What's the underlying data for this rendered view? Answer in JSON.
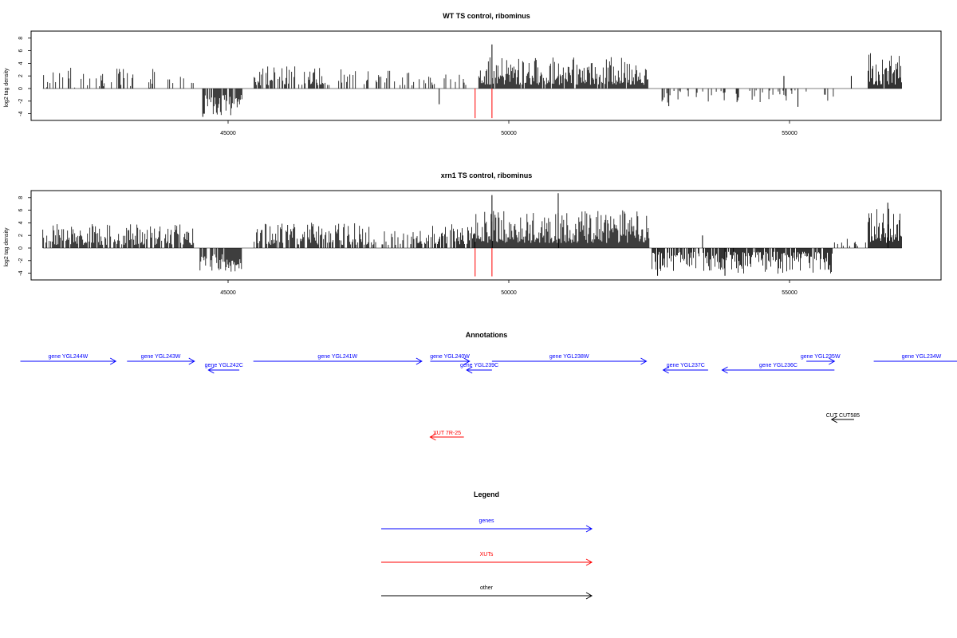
{
  "colors": {
    "genes": "#0000ff",
    "xuts": "#ff0000",
    "other": "#000000",
    "density": "#000000",
    "marker": "#ff0000"
  },
  "chart_data": [
    {
      "type": "bar",
      "title": "WT TS control, ribominus",
      "ylabel": "log2 tag density",
      "x_range": [
        41500,
        57200
      ],
      "ylim": [
        -5,
        9.5
      ],
      "x_ticks": [
        "45000",
        "50000",
        "55000"
      ],
      "x_tick_values": [
        45000,
        50000,
        55000
      ],
      "y_ticks": [
        "-4",
        "-2",
        "0",
        "2",
        "4",
        "6",
        "8"
      ],
      "y_tick_values": [
        -4,
        -2,
        0,
        2,
        4,
        6,
        8
      ],
      "segments": [
        {
          "from": 41700,
          "to": 44100,
          "min": 0,
          "max": 3.4,
          "density": 0.28,
          "sign": 1
        },
        {
          "from": 44150,
          "to": 44400,
          "min": 0.5,
          "max": 2.0,
          "density": 0.1,
          "sign": 1
        },
        {
          "from": 44550,
          "to": 45250,
          "min": 1.0,
          "max": 4.3,
          "density": 0.75,
          "sign": -1
        },
        {
          "from": 45450,
          "to": 46800,
          "min": 0.5,
          "max": 3.6,
          "density": 0.55,
          "sign": 1
        },
        {
          "from": 46800,
          "to": 48700,
          "min": 0.5,
          "max": 3.1,
          "density": 0.28,
          "sign": 1
        },
        {
          "from": 48750,
          "to": 49250,
          "min": 0.5,
          "max": 2.4,
          "density": 0.2,
          "sign": 1
        },
        {
          "from": 49450,
          "to": 52500,
          "min": 0.6,
          "max": 5.0,
          "density": 0.95,
          "sign": 1
        },
        {
          "from": 52700,
          "to": 54800,
          "min": 0.3,
          "max": 2.4,
          "density": 0.22,
          "sign": -1
        },
        {
          "from": 54800,
          "to": 55800,
          "min": 0.3,
          "max": 2.0,
          "density": 0.2,
          "sign": -1
        },
        {
          "from": 56400,
          "to": 57000,
          "min": 0.5,
          "max": 5.7,
          "density": 0.95,
          "sign": 1
        }
      ],
      "spikes": [
        {
          "x": 48760,
          "y": -2.5
        },
        {
          "x": 49400,
          "y": -4.7,
          "color": "marker"
        },
        {
          "x": 49700,
          "y": -4.7,
          "color": "marker"
        },
        {
          "x": 49700,
          "y": 7.0
        },
        {
          "x": 52850,
          "y": -2.8
        },
        {
          "x": 55150,
          "y": -2.9
        },
        {
          "x": 56100,
          "y": 2.0
        },
        {
          "x": 54900,
          "y": 2.0
        },
        {
          "x": 44550,
          "y": -4.5
        }
      ]
    },
    {
      "type": "bar",
      "title": "xrn1 TS control, ribominus",
      "ylabel": "log2 tag density",
      "x_range": [
        41500,
        57200
      ],
      "ylim": [
        -5,
        9.5
      ],
      "x_ticks": [
        "45000",
        "50000",
        "55000"
      ],
      "x_tick_values": [
        45000,
        50000,
        55000
      ],
      "y_ticks": [
        "-4",
        "-2",
        "0",
        "2",
        "4",
        "6",
        "8"
      ],
      "y_tick_values": [
        -4,
        -2,
        0,
        2,
        4,
        6,
        8
      ],
      "segments": [
        {
          "from": 41700,
          "to": 44400,
          "min": 0.5,
          "max": 3.8,
          "density": 0.75,
          "sign": 1
        },
        {
          "from": 44500,
          "to": 45250,
          "min": 1.0,
          "max": 3.8,
          "density": 0.85,
          "sign": -1
        },
        {
          "from": 45450,
          "to": 47600,
          "min": 0.5,
          "max": 4.2,
          "density": 0.7,
          "sign": 1
        },
        {
          "from": 47600,
          "to": 48500,
          "min": 0.5,
          "max": 2.8,
          "density": 0.45,
          "sign": 1
        },
        {
          "from": 48500,
          "to": 49400,
          "min": 0.6,
          "max": 4.0,
          "density": 0.8,
          "sign": 1
        },
        {
          "from": 49400,
          "to": 52500,
          "min": 0.8,
          "max": 6.0,
          "density": 1.0,
          "sign": 1
        },
        {
          "from": 52550,
          "to": 54000,
          "min": 0.6,
          "max": 3.8,
          "density": 0.75,
          "sign": -1
        },
        {
          "from": 54000,
          "to": 55800,
          "min": 0.6,
          "max": 4.2,
          "density": 0.85,
          "sign": -1
        },
        {
          "from": 55800,
          "to": 56400,
          "min": 0.3,
          "max": 1.5,
          "density": 0.3,
          "sign": 1
        },
        {
          "from": 56400,
          "to": 57000,
          "min": 0.8,
          "max": 6.6,
          "density": 1.0,
          "sign": 1
        }
      ],
      "spikes": [
        {
          "x": 49400,
          "y": -4.5,
          "color": "marker"
        },
        {
          "x": 49700,
          "y": -4.5,
          "color": "marker"
        },
        {
          "x": 49700,
          "y": 8.4
        },
        {
          "x": 50880,
          "y": 8.7
        },
        {
          "x": 52650,
          "y": -4.4
        },
        {
          "x": 53850,
          "y": -4.4
        },
        {
          "x": 56750,
          "y": 7.2
        },
        {
          "x": 53450,
          "y": 2.0
        }
      ]
    }
  ],
  "annotations": {
    "title": "Annotations",
    "genes": [
      {
        "label": "gene YGL244W",
        "x1": 41300,
        "x2": 43000,
        "row": 0,
        "dir": "right"
      },
      {
        "label": "gene YGL243W",
        "x1": 43200,
        "x2": 44400,
        "row": 0,
        "dir": "right"
      },
      {
        "label": "gene YGL242C",
        "x1": 44650,
        "x2": 45200,
        "row": 1,
        "dir": "left"
      },
      {
        "label": "gene YGL241W",
        "x1": 45450,
        "x2": 48450,
        "row": 0,
        "dir": "right"
      },
      {
        "label": "gene YGL240W",
        "x1": 48600,
        "x2": 49300,
        "row": 0,
        "dir": "right"
      },
      {
        "label": "gene YGL239C",
        "x1": 49250,
        "x2": 49700,
        "row": 1,
        "dir": "left"
      },
      {
        "label": "gene YGL238W",
        "x1": 49700,
        "x2": 52450,
        "row": 0,
        "dir": "right"
      },
      {
        "label": "gene YGL237C",
        "x1": 52750,
        "x2": 53550,
        "row": 1,
        "dir": "left"
      },
      {
        "label": "gene YGL236C",
        "x1": 53800,
        "x2": 55800,
        "row": 1,
        "dir": "left"
      },
      {
        "label": "gene YGL235W",
        "x1": 55300,
        "x2": 55800,
        "row": 0,
        "dir": "right"
      },
      {
        "label": "gene YGL234W",
        "x1": 56500,
        "x2": 58200,
        "row": 0,
        "dir": "right"
      }
    ],
    "xuts": [
      {
        "label": "XUT 7R-25",
        "x1": 48600,
        "x2": 49200,
        "dir": "left"
      }
    ],
    "others": [
      {
        "label": "CUT CUT585",
        "x1": 55750,
        "x2": 56150,
        "dir": "left"
      }
    ]
  },
  "legend": {
    "title": "Legend",
    "items": [
      {
        "label": "genes",
        "color": "genes"
      },
      {
        "label": "XUTs",
        "color": "xuts"
      },
      {
        "label": "other",
        "color": "other"
      }
    ]
  }
}
